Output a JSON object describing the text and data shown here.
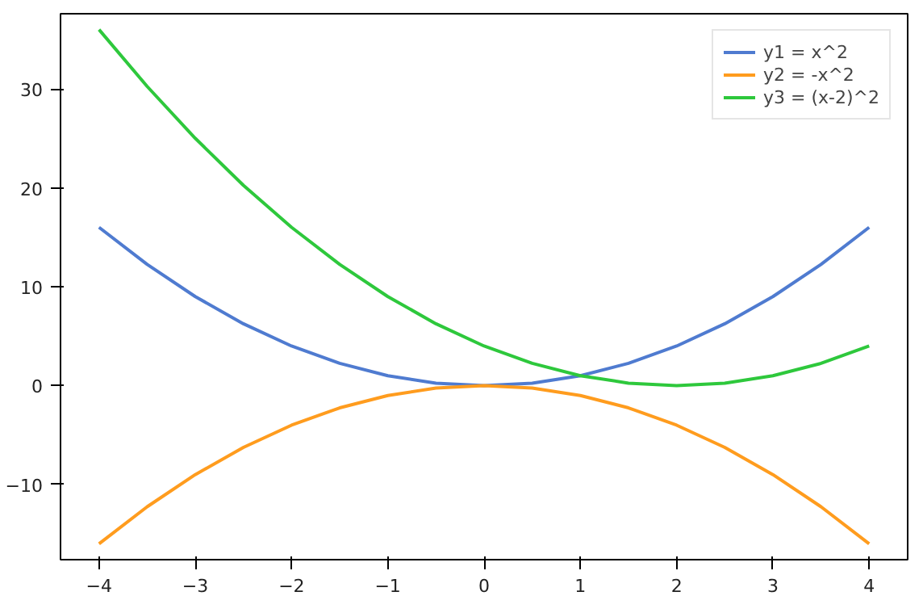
{
  "chart_data": {
    "type": "line",
    "x": [
      -4,
      -3.5,
      -3,
      -2.5,
      -2,
      -1.5,
      -1,
      -0.5,
      0,
      0.5,
      1,
      1.5,
      2,
      2.5,
      3,
      3.5,
      4
    ],
    "series": [
      {
        "name": "y1 = x^2",
        "color": "#4f7bd0",
        "values": [
          16,
          12.25,
          9,
          6.25,
          4,
          2.25,
          1,
          0.25,
          0,
          0.25,
          1,
          2.25,
          4,
          6.25,
          9,
          12.25,
          16
        ]
      },
      {
        "name": "y2 = -x^2",
        "color": "#ff9c1e",
        "values": [
          -16,
          -12.25,
          -9,
          -6.25,
          -4,
          -2.25,
          -1,
          -0.25,
          0,
          -0.25,
          -1,
          -2.25,
          -4,
          -6.25,
          -9,
          -12.25,
          -16
        ]
      },
      {
        "name": "y3 = (x-2)^2",
        "color": "#2ec83c",
        "values": [
          36,
          30.25,
          25,
          20.25,
          16,
          12.25,
          9,
          6.25,
          4,
          2.25,
          1,
          0.25,
          0,
          0.25,
          1,
          2.25,
          4
        ]
      }
    ],
    "xlim": [
      -4.4,
      4.4
    ],
    "ylim": [
      -17.6,
      37.6
    ],
    "xticks": [
      -4,
      -3,
      -2,
      -1,
      0,
      1,
      2,
      3,
      4
    ],
    "yticks": [
      -10,
      0,
      10,
      20,
      30
    ],
    "legend": "top right",
    "grid": false,
    "marker": "none",
    "line_style": "solid"
  }
}
